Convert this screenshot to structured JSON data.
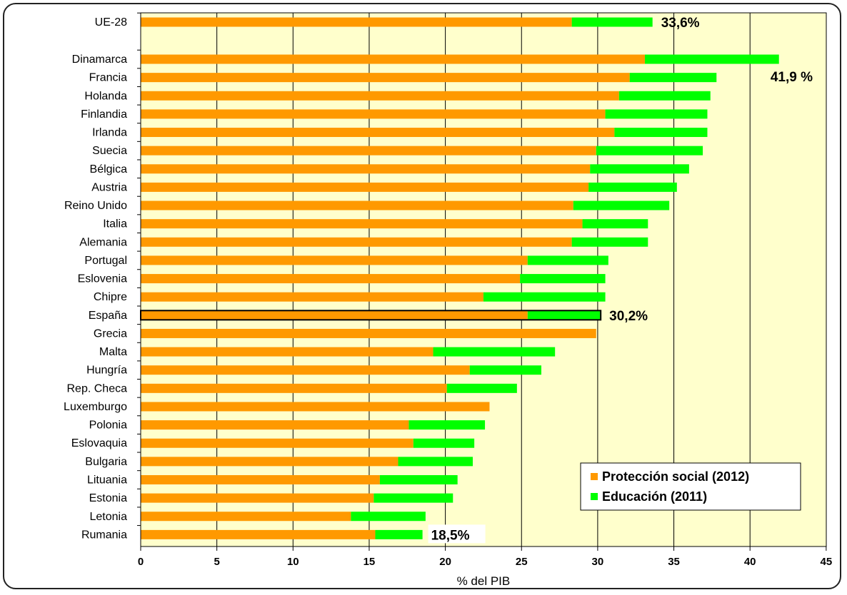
{
  "chart_data": {
    "type": "bar",
    "orientation": "horizontal",
    "stacked": true,
    "xlabel": "% del PIB",
    "xlim": [
      0,
      45
    ],
    "xticks": [
      0,
      5,
      10,
      15,
      20,
      25,
      30,
      35,
      40,
      45
    ],
    "grid": "vertical",
    "legend_position": "bottom-right",
    "highlight_category": "España",
    "colors": {
      "proteccion": "#FF9900",
      "educacion": "#00FF00",
      "plot_bg": "#FFFFCC"
    },
    "categories": [
      "UE-28",
      "Dinamarca",
      "Francia",
      "Holanda",
      "Finlandia",
      "Irlanda",
      "Suecia",
      "Bélgica",
      "Austria",
      "Reino Unido",
      "Italia",
      "Alemania",
      "Portugal",
      "Eslovenia",
      "Chipre",
      "España",
      "Grecia",
      "Malta",
      "Hungría",
      "Rep. Checa",
      "Luxemburgo",
      "Polonia",
      "Eslovaquia",
      "Bulgaria",
      "Lituania",
      "Estonia",
      "Letonia",
      "Rumania"
    ],
    "series": [
      {
        "name": "Protección social (2012)",
        "values": [
          28.3,
          33.1,
          32.1,
          31.4,
          30.5,
          31.1,
          29.9,
          29.5,
          29.4,
          28.4,
          29.0,
          28.3,
          25.4,
          24.9,
          22.5,
          25.4,
          29.9,
          19.2,
          21.6,
          20.1,
          22.9,
          17.6,
          17.9,
          16.9,
          15.7,
          15.3,
          13.8,
          15.4
        ]
      },
      {
        "name": "Educación (2011)",
        "values": [
          5.3,
          8.8,
          5.7,
          6.0,
          6.7,
          6.1,
          7.0,
          6.5,
          5.8,
          6.3,
          4.3,
          5.0,
          5.3,
          5.6,
          8.0,
          4.8,
          0.0,
          8.0,
          4.7,
          4.6,
          0.0,
          5.0,
          4.0,
          4.9,
          5.1,
          5.2,
          4.9,
          3.1
        ]
      }
    ],
    "annotations": [
      {
        "category": "UE-28",
        "text": "33,6%"
      },
      {
        "category": "Dinamarca",
        "text": "41,9 %"
      },
      {
        "category": "España",
        "text": "30,2%"
      },
      {
        "category": "Rumania",
        "text": "18,5%"
      }
    ]
  }
}
